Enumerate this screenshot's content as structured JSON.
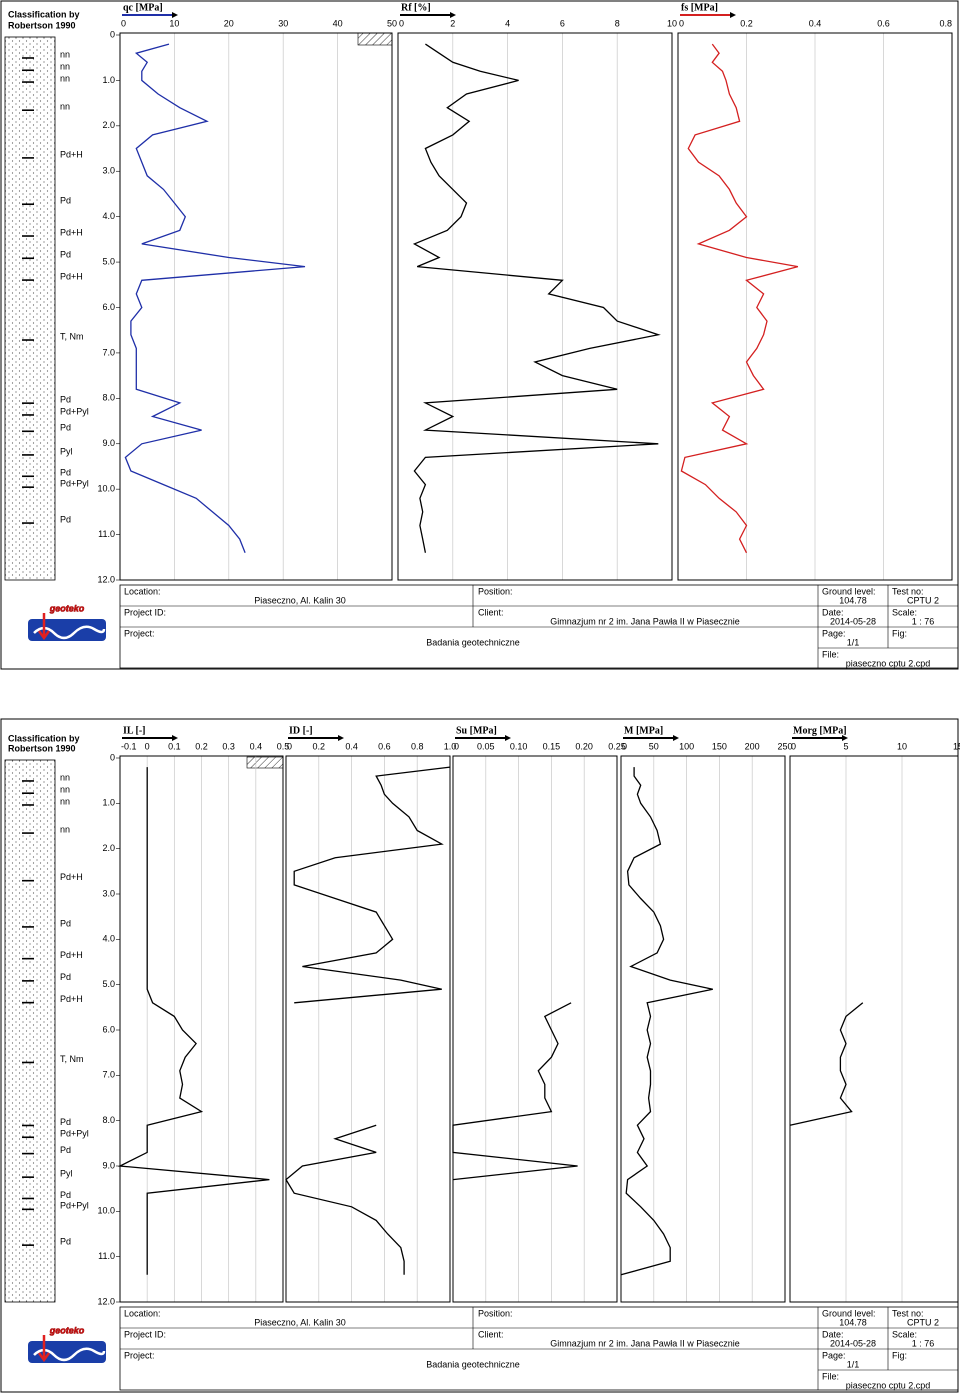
{
  "classification_title": [
    "Classification by",
    "Robertson 1990"
  ],
  "layers": [
    {
      "label": "nn",
      "depth": 0.44
    },
    {
      "label": "nn",
      "depth": 0.71
    },
    {
      "label": "nn",
      "depth": 0.97
    },
    {
      "label": "nn",
      "depth": 1.59
    },
    {
      "label": "Pd+H",
      "depth": 2.64
    },
    {
      "label": "Pd",
      "depth": 3.66
    },
    {
      "label": "Pd+H",
      "depth": 4.36
    },
    {
      "label": "Pd",
      "depth": 4.85
    },
    {
      "label": "Pd+H",
      "depth": 5.33
    },
    {
      "label": "T, Nm",
      "depth": 6.65
    },
    {
      "label": "Pd",
      "depth": 8.04
    },
    {
      "label": "Pd+Pyl",
      "depth": 8.3
    },
    {
      "label": "Pd",
      "depth": 8.66
    },
    {
      "label": "Pyl",
      "depth": 9.18
    },
    {
      "label": "Pd",
      "depth": 9.65
    },
    {
      "label": "Pd+Pyl",
      "depth": 9.89
    },
    {
      "label": "Pd",
      "depth": 10.68
    }
  ],
  "depth": {
    "ylim": [
      0,
      12
    ],
    "yticks": [
      0,
      {
        "value": 1,
        "label": "1.0"
      },
      {
        "value": 2,
        "label": "2.0"
      },
      {
        "value": 3,
        "label": "3.0"
      },
      {
        "value": 4,
        "label": "4.0"
      },
      {
        "value": 5,
        "label": "5.0"
      },
      {
        "value": 6,
        "label": "6.0"
      },
      {
        "value": 7,
        "label": "7.0"
      },
      {
        "value": 8,
        "label": "8.0"
      },
      {
        "value": 9,
        "label": "9.0"
      },
      {
        "value": 10,
        "label": "10.0"
      },
      {
        "value": 11,
        "label": "11.0"
      },
      {
        "value": 12,
        "label": "12.0"
      }
    ],
    "values": [
      0.2,
      0.4,
      0.6,
      0.8,
      1.0,
      1.3,
      1.6,
      1.9,
      2.2,
      2.5,
      2.8,
      3.1,
      3.4,
      3.7,
      4.0,
      4.3,
      4.6,
      4.9,
      5.1,
      5.4,
      5.7,
      6.0,
      6.3,
      6.6,
      6.9,
      7.2,
      7.5,
      7.8,
      8.1,
      8.4,
      8.7,
      9.0,
      9.3,
      9.6,
      9.9,
      10.2,
      10.5,
      10.8,
      11.1,
      11.4
    ]
  },
  "chart_data": [
    {
      "type": "line",
      "xlabel": "qc [MPa]",
      "color": "#1f2fa8",
      "xlim": [
        0,
        50
      ],
      "xticks": [
        0,
        10,
        20,
        30,
        40,
        50
      ],
      "grid": true,
      "values": [
        9,
        3,
        5,
        4,
        4,
        7,
        11,
        16,
        6,
        3,
        4,
        5,
        8,
        10,
        12,
        11,
        4,
        20,
        34,
        4,
        3,
        4,
        2,
        2,
        3,
        3,
        3,
        3,
        11,
        6,
        15,
        4,
        1,
        2,
        8,
        14,
        17,
        20,
        22,
        23
      ]
    },
    {
      "type": "line",
      "xlabel": "Rf [%]",
      "color": "#000000",
      "xlim": [
        0,
        10
      ],
      "xticks": [
        0,
        2,
        4,
        6,
        8,
        10
      ],
      "grid": true,
      "values": [
        1,
        1.5,
        2,
        3,
        4.4,
        2.5,
        1.8,
        2.6,
        2,
        1,
        1.2,
        1.5,
        2,
        2.5,
        2.3,
        1.8,
        0.6,
        1.5,
        0.7,
        6,
        5.5,
        7.5,
        8,
        9.5,
        7,
        5,
        6,
        8,
        1,
        2,
        1,
        9.5,
        1,
        0.6,
        1,
        0.8,
        0.9,
        0.8,
        0.9,
        1
      ]
    },
    {
      "type": "line",
      "xlabel": "fs [MPa]",
      "color": "#d42020",
      "xlim": [
        0,
        0.8
      ],
      "xticks": [
        0,
        0.2,
        0.4,
        0.6,
        0.8
      ],
      "grid": true,
      "values": [
        0.1,
        0.12,
        0.1,
        0.13,
        0.14,
        0.15,
        0.17,
        0.18,
        0.05,
        0.03,
        0.06,
        0.12,
        0.15,
        0.17,
        0.2,
        0.15,
        0.06,
        0.2,
        0.35,
        0.2,
        0.25,
        0.23,
        0.26,
        0.25,
        0.23,
        0.2,
        0.22,
        0.25,
        0.1,
        0.15,
        0.13,
        0.2,
        0.02,
        0.01,
        0.08,
        0.12,
        0.17,
        0.2,
        0.18,
        0.2
      ]
    },
    {
      "type": "line",
      "xlabel": "IL [-]",
      "color": "#000000",
      "xlim": [
        -0.1,
        0.5
      ],
      "xticks": [
        -0.1,
        0,
        0.1,
        0.2,
        0.3,
        0.4,
        0.5
      ],
      "grid": true,
      "values": [
        0,
        0,
        0,
        0,
        0,
        0,
        0,
        0,
        0,
        0,
        0,
        0,
        0,
        0,
        0,
        0,
        0,
        0,
        0,
        0.02,
        0.1,
        0.13,
        0.18,
        0.14,
        0.12,
        0.13,
        0.12,
        0.2,
        0,
        0,
        0,
        -0.1,
        0.45,
        0,
        0,
        0,
        0,
        0,
        0,
        0
      ]
    },
    {
      "type": "line",
      "xlabel": "ID [-]",
      "color": "#000000",
      "xlim": [
        0,
        1
      ],
      "xticks": [
        0,
        0.2,
        0.4,
        0.6,
        0.8,
        {
          "value": 1,
          "label": "1.0"
        }
      ],
      "grid": true,
      "values": [
        1,
        0.55,
        0.58,
        0.6,
        0.65,
        0.75,
        0.8,
        0.95,
        0.3,
        0.05,
        0.05,
        0.3,
        0.55,
        0.6,
        0.65,
        0.55,
        0.1,
        0.7,
        0.95,
        0.05,
        null,
        null,
        null,
        null,
        null,
        null,
        null,
        null,
        0.55,
        0.3,
        0.55,
        0.1,
        0,
        0.05,
        0.4,
        0.55,
        0.62,
        0.7,
        0.72,
        0.72
      ]
    },
    {
      "type": "line",
      "xlabel": "Su [MPa]",
      "color": "#000000",
      "xlim": [
        0,
        0.25
      ],
      "xticks": [
        0,
        0.05,
        {
          "value": 0.1,
          "label": "0.10"
        },
        0.15,
        {
          "value": 0.2,
          "label": "0.20"
        },
        0.25
      ],
      "grid": true,
      "values": [
        null,
        null,
        null,
        null,
        null,
        null,
        null,
        null,
        null,
        null,
        null,
        null,
        null,
        null,
        null,
        null,
        null,
        null,
        null,
        0.18,
        0.14,
        0.15,
        0.16,
        0.15,
        0.13,
        0.14,
        0.14,
        0.15,
        0,
        0,
        0,
        0.19,
        0,
        null,
        null,
        null,
        null,
        null,
        null,
        null
      ]
    },
    {
      "type": "line",
      "xlabel": "M [MPa]",
      "color": "#000000",
      "xlim": [
        0,
        250
      ],
      "xticks": [
        0,
        50,
        100,
        150,
        200,
        250
      ],
      "grid": true,
      "values": [
        20,
        20,
        30,
        25,
        30,
        45,
        55,
        60,
        20,
        10,
        12,
        30,
        50,
        60,
        65,
        55,
        15,
        75,
        140,
        40,
        45,
        40,
        45,
        40,
        45,
        45,
        42,
        45,
        25,
        35,
        25,
        40,
        10,
        8,
        30,
        50,
        65,
        75,
        75,
        0
      ]
    },
    {
      "type": "line",
      "xlabel": "Morg [MPa]",
      "color": "#000000",
      "xlim": [
        0,
        15
      ],
      "xticks": [
        0,
        5,
        10,
        15
      ],
      "grid": true,
      "values": [
        null,
        null,
        null,
        null,
        null,
        null,
        null,
        null,
        null,
        null,
        null,
        null,
        null,
        null,
        null,
        null,
        null,
        null,
        null,
        6.5,
        5,
        4.5,
        5,
        4.5,
        4.5,
        5,
        4.5,
        5.5,
        0,
        null,
        null,
        null,
        null,
        null,
        null,
        null,
        null,
        null,
        null,
        null
      ]
    }
  ],
  "logo": "geoteko",
  "footer": {
    "location_label": "Location:",
    "location": "Piaseczno, Al. Kalin 30",
    "position_label": "Position:",
    "ground_level_label": "Ground level:",
    "ground_level": "104.78",
    "test_no_label": "Test no:",
    "test_no": "CPTU 2",
    "project_id_label": "Project ID:",
    "client_label": "Client:",
    "client": "Gimnazjum nr 2 im. Jana Pawła II w Piasecznie",
    "date_label": "Date:",
    "date": "2014-05-28",
    "scale_label": "Scale:",
    "scale": "1 : 76",
    "project_label": "Project:",
    "project": "Badania geotechniczne",
    "page_label": "Page:",
    "page": "1/1",
    "fig_label": "Fig:",
    "file_label": "File:",
    "file": "piaseczno cptu 2.cpd"
  }
}
